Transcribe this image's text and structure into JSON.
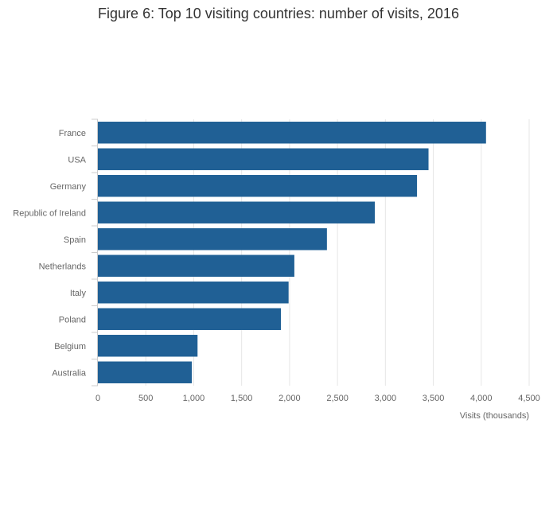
{
  "chart_data": {
    "type": "bar",
    "orientation": "horizontal",
    "title": "Figure 6: Top 10 visiting countries: number of visits, 2016",
    "categories": [
      "France",
      "USA",
      "Germany",
      "Republic of Ireland",
      "Spain",
      "Netherlands",
      "Italy",
      "Poland",
      "Belgium",
      "Australia"
    ],
    "values": [
      4050,
      3450,
      3330,
      2890,
      2390,
      2050,
      1990,
      1910,
      1040,
      980
    ],
    "xlabel": "Visits (thousands)",
    "ylabel": "",
    "xlim": [
      0,
      4500
    ],
    "xticks": [
      0,
      500,
      1000,
      1500,
      2000,
      2500,
      3000,
      3500,
      4000,
      4500
    ],
    "xtick_labels": [
      "0",
      "500",
      "1,000",
      "1,500",
      "2,000",
      "2,500",
      "3,000",
      "3,500",
      "4,000",
      "4,500"
    ],
    "grid": "vertical",
    "legend": "none",
    "colors": {
      "bar": "#206095",
      "grid": "#e6e6e6",
      "axis_text": "#666666",
      "title": "#333333"
    }
  }
}
